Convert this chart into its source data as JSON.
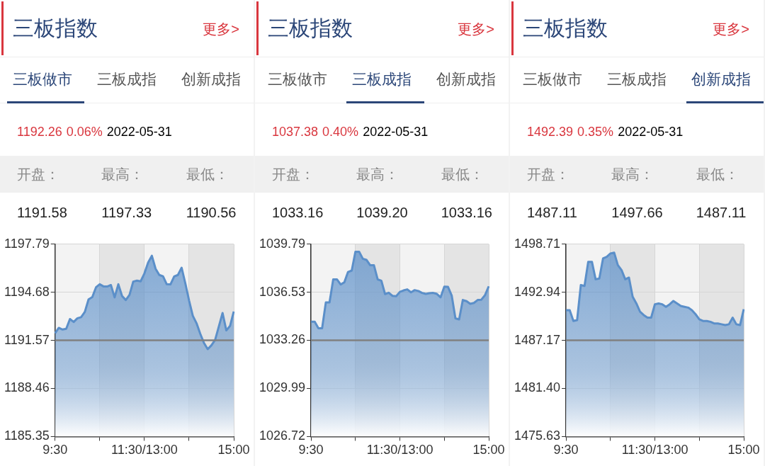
{
  "chart_data": [
    {
      "type": "area",
      "title": "三板指数",
      "annotations": [
        "更多>",
        "三板做市",
        "三板成指",
        "创新成指",
        "1192.26",
        "0.06%",
        "2022-05-31",
        "开盘：",
        "最高：",
        "最低：",
        "1191.58",
        "1197.33",
        "1190.56"
      ],
      "categories": [
        "9:30",
        null,
        null,
        null,
        null,
        null,
        null,
        null,
        null,
        null,
        null,
        null,
        null,
        null,
        null,
        null,
        null,
        null,
        null,
        null,
        null,
        null,
        null,
        null,
        "11:30/13:00",
        null,
        null,
        null,
        null,
        null,
        null,
        null,
        null,
        null,
        null,
        null,
        null,
        null,
        null,
        null,
        null,
        null,
        null,
        null,
        null,
        null,
        null,
        null,
        "15:00"
      ],
      "series": [
        {
          "color": "#5b8fc9",
          "values": [
            1192.03,
            1192.38,
            1192.27,
            1192.32,
            1192.95,
            1192.76,
            1193.0,
            1193.07,
            1193.41,
            1194.22,
            1194.37,
            1195.0,
            1195.2,
            1195.06,
            1195.05,
            1195.15,
            1194.35,
            1195.2,
            1194.44,
            1194.18,
            1194.51,
            1195.37,
            1195.43,
            1195.39,
            1195.9,
            1196.6,
            1197.04,
            1196.2,
            1195.8,
            1195.71,
            1195.2,
            1195.19,
            1195.7,
            1195.8,
            1196.27,
            1195.25,
            1194.15,
            1193.16,
            1192.68,
            1192.0,
            1191.4,
            1191.0,
            1191.25,
            1191.6,
            1192.47,
            1193.34,
            1192.22,
            1192.5,
            1193.44
          ]
        }
      ],
      "ylim": [
        1185.35,
        1197.79
      ],
      "yticks": [
        1185.35,
        1188.46,
        1191.57,
        1194.68,
        1197.79
      ],
      "ref_lines": [
        {
          "axis": "y",
          "value": 1191.57,
          "color": "#808080"
        }
      ],
      "grid": true,
      "legend": false
    },
    {
      "type": "area",
      "title": "三板指数",
      "annotations": [
        "更多>",
        "三板做市",
        "三板成指",
        "创新成指",
        "1037.38",
        "0.40%",
        "2022-05-31",
        "开盘：",
        "最高：",
        "最低：",
        "1033.16",
        "1039.20",
        "1033.16"
      ],
      "categories": [
        "9:30",
        null,
        null,
        null,
        null,
        null,
        null,
        null,
        null,
        null,
        null,
        null,
        null,
        null,
        null,
        null,
        null,
        null,
        null,
        null,
        null,
        null,
        null,
        null,
        "11:30/13:00",
        null,
        null,
        null,
        null,
        null,
        null,
        null,
        null,
        null,
        null,
        null,
        null,
        null,
        null,
        null,
        null,
        null,
        null,
        null,
        null,
        null,
        null,
        null,
        "15:00"
      ],
      "series": [
        {
          "color": "#5b8fc9",
          "values": [
            1034.52,
            1034.52,
            1034.08,
            1034.08,
            1035.83,
            1035.83,
            1037.4,
            1037.4,
            1037.05,
            1037.2,
            1037.9,
            1038.0,
            1039.28,
            1039.28,
            1038.8,
            1038.72,
            1038.36,
            1038.36,
            1037.4,
            1037.31,
            1036.4,
            1036.49,
            1036.28,
            1036.26,
            1036.55,
            1036.65,
            1036.72,
            1036.52,
            1036.67,
            1036.61,
            1036.48,
            1036.41,
            1036.46,
            1036.48,
            1036.41,
            1036.18,
            1036.91,
            1036.89,
            1036.3,
            1034.75,
            1034.68,
            1036.0,
            1035.92,
            1035.74,
            1035.8,
            1036.0,
            1036.02,
            1036.33,
            1036.93
          ]
        }
      ],
      "ylim": [
        1026.72,
        1039.79
      ],
      "yticks": [
        1026.72,
        1029.99,
        1033.26,
        1036.53,
        1039.79
      ],
      "ref_lines": [
        {
          "axis": "y",
          "value": 1033.26,
          "color": "#808080"
        }
      ],
      "grid": true,
      "legend": false
    },
    {
      "type": "area",
      "title": "三板指数",
      "annotations": [
        "更多>",
        "三板做市",
        "三板成指",
        "创新成指",
        "1492.39",
        "0.35%",
        "2022-05-31",
        "开盘：",
        "最高：",
        "最低：",
        "1487.11",
        "1497.66",
        "1487.11"
      ],
      "categories": [
        "9:30",
        null,
        null,
        null,
        null,
        null,
        null,
        null,
        null,
        null,
        null,
        null,
        null,
        null,
        null,
        null,
        null,
        null,
        null,
        null,
        null,
        null,
        null,
        null,
        "11:30/13:00",
        null,
        null,
        null,
        null,
        null,
        null,
        null,
        null,
        null,
        null,
        null,
        null,
        null,
        null,
        null,
        null,
        null,
        null,
        null,
        null,
        null,
        null,
        null,
        "15:00"
      ],
      "series": [
        {
          "color": "#5b8fc9",
          "values": [
            1490.8,
            1490.8,
            1489.5,
            1489.6,
            1493.8,
            1493.7,
            1496.6,
            1496.6,
            1494.5,
            1494.6,
            1497.0,
            1497.2,
            1497.6,
            1497.7,
            1496.2,
            1495.6,
            1494.5,
            1494.7,
            1492.4,
            1491.6,
            1490.6,
            1490.2,
            1489.9,
            1489.9,
            1491.5,
            1491.6,
            1491.5,
            1491.2,
            1491.5,
            1491.9,
            1491.6,
            1491.3,
            1491.2,
            1491.1,
            1490.8,
            1490.3,
            1489.7,
            1489.5,
            1489.5,
            1489.4,
            1489.2,
            1489.2,
            1489.1,
            1489.0,
            1489.1,
            1489.9,
            1489.1,
            1489.0,
            1490.9
          ]
        }
      ],
      "ylim": [
        1475.63,
        1498.71
      ],
      "yticks": [
        1475.63,
        {
          "value": 1481.4,
          "label": "1481.40"
        },
        1487.17,
        1492.94,
        1498.71
      ],
      "ref_lines": [
        {
          "axis": "y",
          "value": 1487.17,
          "color": "#808080"
        }
      ],
      "grid": true,
      "legend": false
    }
  ]
}
